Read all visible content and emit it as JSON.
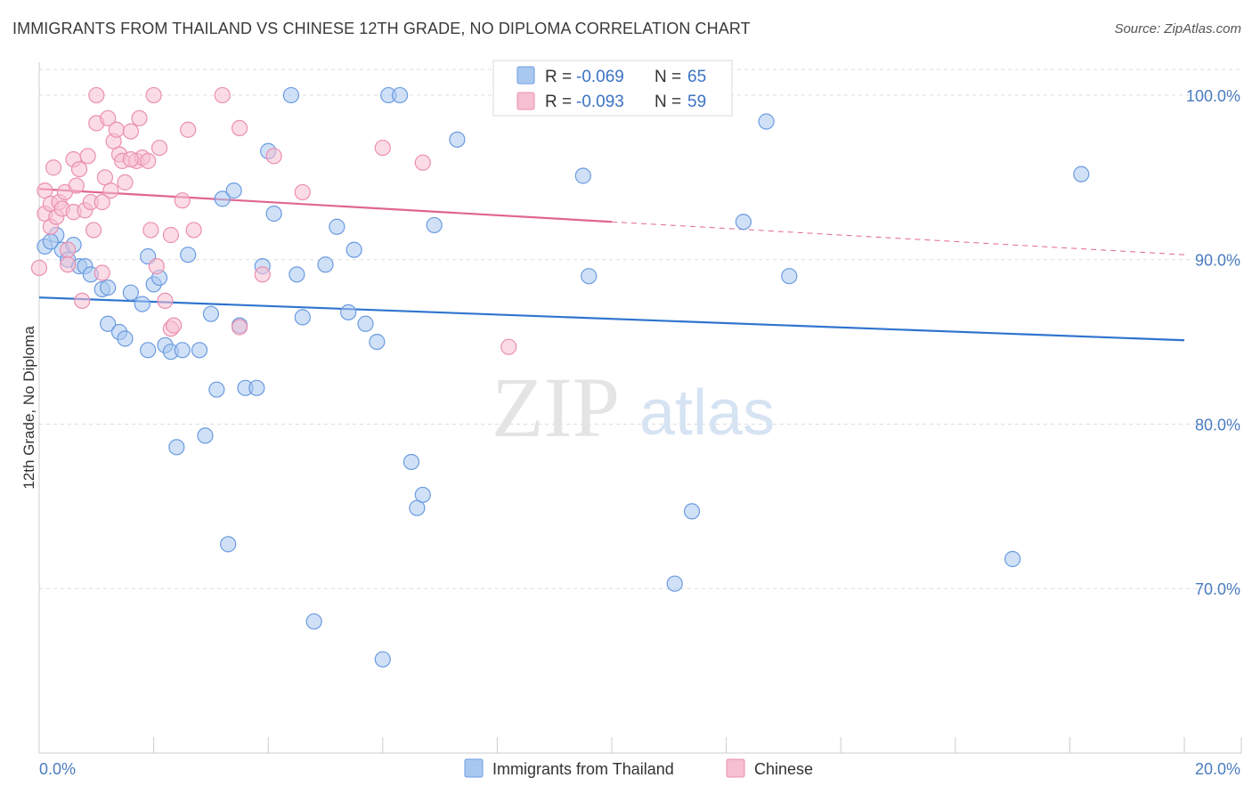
{
  "title": "IMMIGRANTS FROM THAILAND VS CHINESE 12TH GRADE, NO DIPLOMA CORRELATION CHART",
  "source": "Source: ZipAtlas.com",
  "watermark": {
    "zip": "ZIP",
    "atlas": "atlas"
  },
  "colors": {
    "blue_fill": "#a9c8f0",
    "blue_stroke": "#6b9be0",
    "blue_line": "#2f74cf",
    "pink_fill": "#f7bfd2",
    "pink_stroke": "#ea8fb0",
    "pink_line": "#e0668f",
    "tick_text": "#4a7cc0",
    "grid": "#dddddd"
  },
  "legend": {
    "series": [
      {
        "r_label": "R =",
        "r_value": "-0.069",
        "n_label": "N =",
        "n_value": "65"
      },
      {
        "r_label": "R =",
        "r_value": "-0.093",
        "n_label": "N =",
        "n_value": "59"
      }
    ]
  },
  "chart_data": {
    "type": "scatter",
    "xlabel": "",
    "ylabel": "12th Grade, No Diploma",
    "xlim": [
      0,
      20
    ],
    "ylim": [
      60,
      102
    ],
    "x_tick_labels": [
      {
        "value": 0,
        "label": "0.0%"
      },
      {
        "value": 20,
        "label": "20.0%"
      }
    ],
    "y_tick_labels": [
      {
        "value": 100,
        "label": "100.0%"
      },
      {
        "value": 90,
        "label": "90.0%"
      },
      {
        "value": 80,
        "label": "80.0%"
      },
      {
        "value": 70,
        "label": "70.0%"
      }
    ],
    "grid": true,
    "legend_position": "top-center",
    "series": [
      {
        "name": "Immigrants from Thailand",
        "color": "blue",
        "trend": {
          "x": [
            0,
            20
          ],
          "y": [
            87.7,
            85.1
          ]
        },
        "points": [
          [
            0.1,
            90.8
          ],
          [
            0.3,
            91.5
          ],
          [
            0.4,
            90.6
          ],
          [
            0.5,
            90.0
          ],
          [
            0.6,
            90.9
          ],
          [
            0.7,
            89.6
          ],
          [
            0.8,
            89.6
          ],
          [
            0.9,
            89.1
          ],
          [
            1.1,
            88.2
          ],
          [
            1.2,
            88.3
          ],
          [
            1.2,
            86.1
          ],
          [
            1.4,
            85.6
          ],
          [
            1.5,
            85.2
          ],
          [
            1.6,
            88.0
          ],
          [
            1.8,
            87.3
          ],
          [
            1.9,
            90.2
          ],
          [
            2.0,
            88.5
          ],
          [
            2.1,
            88.9
          ],
          [
            2.2,
            84.8
          ],
          [
            2.3,
            84.4
          ],
          [
            2.5,
            84.5
          ],
          [
            2.6,
            90.3
          ],
          [
            2.8,
            84.5
          ],
          [
            2.9,
            79.3
          ],
          [
            3.0,
            86.7
          ],
          [
            3.1,
            82.1
          ],
          [
            3.2,
            93.7
          ],
          [
            3.3,
            72.7
          ],
          [
            3.4,
            94.2
          ],
          [
            3.5,
            86.0
          ],
          [
            3.6,
            82.2
          ],
          [
            3.8,
            82.2
          ],
          [
            3.9,
            89.6
          ],
          [
            4.0,
            96.6
          ],
          [
            4.1,
            92.8
          ],
          [
            4.4,
            100.0
          ],
          [
            4.5,
            89.1
          ],
          [
            4.6,
            86.5
          ],
          [
            4.8,
            68.0
          ],
          [
            5.0,
            89.7
          ],
          [
            5.2,
            92.0
          ],
          [
            5.4,
            86.8
          ],
          [
            5.5,
            90.6
          ],
          [
            5.7,
            86.1
          ],
          [
            5.9,
            85.0
          ],
          [
            6.0,
            65.7
          ],
          [
            6.1,
            100.0
          ],
          [
            6.3,
            100.0
          ],
          [
            6.5,
            77.7
          ],
          [
            6.6,
            74.9
          ],
          [
            6.7,
            75.7
          ],
          [
            6.9,
            92.1
          ],
          [
            7.3,
            97.3
          ],
          [
            9.5,
            95.1
          ],
          [
            9.6,
            89.0
          ],
          [
            11.1,
            70.3
          ],
          [
            11.4,
            74.7
          ],
          [
            12.3,
            92.3
          ],
          [
            12.7,
            98.4
          ],
          [
            13.1,
            89.0
          ],
          [
            17.0,
            71.8
          ],
          [
            18.2,
            95.2
          ],
          [
            2.4,
            78.6
          ],
          [
            1.9,
            84.5
          ],
          [
            0.2,
            91.1
          ]
        ]
      },
      {
        "name": "Chinese",
        "color": "pink",
        "trend": {
          "x": [
            0,
            10
          ],
          "y": [
            94.3,
            92.3
          ]
        },
        "trend_dashed": {
          "x": [
            10,
            20
          ],
          "y": [
            92.3,
            90.3
          ]
        },
        "points": [
          [
            0.0,
            89.5
          ],
          [
            0.1,
            92.8
          ],
          [
            0.1,
            94.2
          ],
          [
            0.2,
            93.4
          ],
          [
            0.2,
            92.0
          ],
          [
            0.25,
            95.6
          ],
          [
            0.3,
            92.6
          ],
          [
            0.35,
            93.5
          ],
          [
            0.4,
            93.1
          ],
          [
            0.45,
            94.1
          ],
          [
            0.5,
            90.6
          ],
          [
            0.5,
            89.7
          ],
          [
            0.6,
            92.9
          ],
          [
            0.6,
            96.1
          ],
          [
            0.65,
            94.5
          ],
          [
            0.7,
            95.5
          ],
          [
            0.75,
            87.5
          ],
          [
            0.8,
            93.0
          ],
          [
            0.85,
            96.3
          ],
          [
            0.9,
            93.5
          ],
          [
            0.95,
            91.8
          ],
          [
            1.0,
            100.0
          ],
          [
            1.0,
            98.3
          ],
          [
            1.1,
            89.2
          ],
          [
            1.1,
            93.5
          ],
          [
            1.15,
            95.0
          ],
          [
            1.2,
            98.6
          ],
          [
            1.25,
            94.2
          ],
          [
            1.3,
            97.2
          ],
          [
            1.35,
            97.9
          ],
          [
            1.4,
            96.4
          ],
          [
            1.45,
            96.0
          ],
          [
            1.5,
            94.7
          ],
          [
            1.6,
            97.8
          ],
          [
            1.7,
            96.0
          ],
          [
            1.75,
            98.6
          ],
          [
            1.8,
            96.2
          ],
          [
            1.9,
            96.0
          ],
          [
            1.95,
            91.8
          ],
          [
            2.0,
            100.0
          ],
          [
            2.05,
            89.6
          ],
          [
            2.1,
            96.8
          ],
          [
            2.2,
            87.5
          ],
          [
            2.3,
            91.5
          ],
          [
            2.3,
            85.8
          ],
          [
            2.5,
            93.6
          ],
          [
            2.6,
            97.9
          ],
          [
            2.7,
            91.8
          ],
          [
            3.2,
            100.0
          ],
          [
            3.5,
            85.9
          ],
          [
            3.5,
            98.0
          ],
          [
            3.9,
            89.1
          ],
          [
            4.1,
            96.3
          ],
          [
            4.6,
            94.1
          ],
          [
            6.0,
            96.8
          ],
          [
            6.7,
            95.9
          ],
          [
            8.2,
            84.7
          ],
          [
            1.6,
            96.1
          ],
          [
            2.35,
            86.0
          ]
        ]
      }
    ]
  }
}
